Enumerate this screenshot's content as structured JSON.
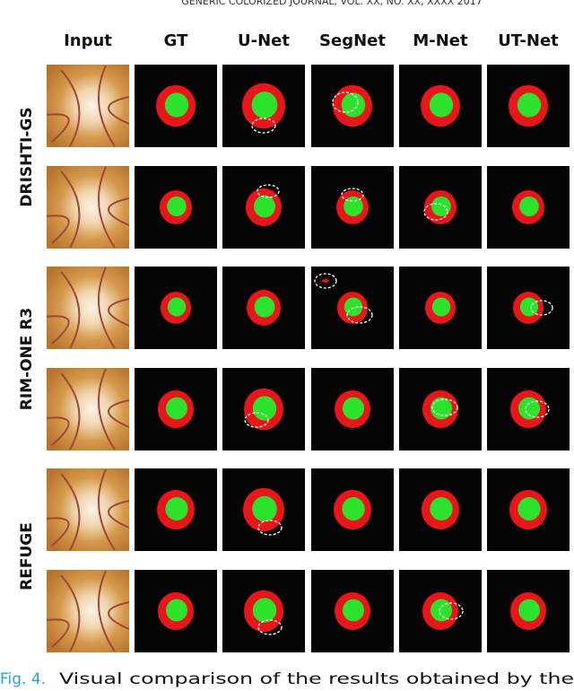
{
  "header": "GENERIC COLORIZED JOURNAL, VOL. XX, NO. XX, XXXX 2017",
  "columns": [
    "Input",
    "GT",
    "U-Net",
    "SegNet",
    "M-Net",
    "UT-Net"
  ],
  "row_labels": [
    "DRISHTI-GS",
    "RIM-ONE R3",
    "REFUGE"
  ],
  "caption": {
    "label": "Fig. 4.",
    "text": "Visual comparison of the results obtained by the"
  }
}
